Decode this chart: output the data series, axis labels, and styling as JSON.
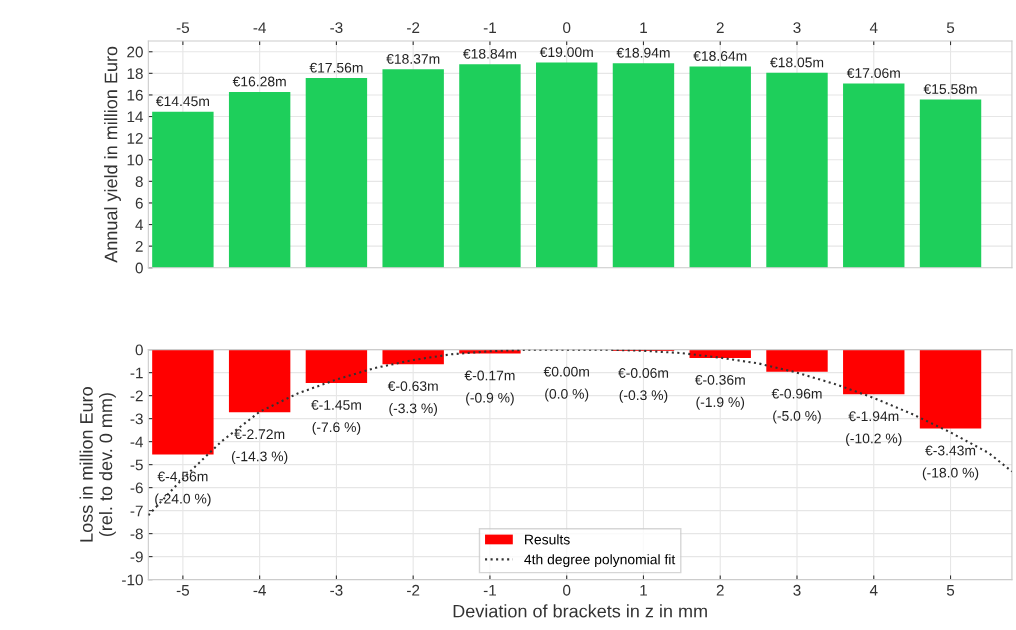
{
  "chart_data": [
    {
      "type": "bar",
      "x": [
        -5,
        -4,
        -3,
        -2,
        -1,
        0,
        1,
        2,
        3,
        4,
        5
      ],
      "xlim": [
        -5.45,
        5.8
      ],
      "xticks": [
        -5,
        -4,
        -3,
        -2,
        -1,
        0,
        1,
        2,
        3,
        4,
        5
      ],
      "ylim": [
        0,
        21
      ],
      "yticks": [
        0,
        2,
        4,
        6,
        8,
        10,
        12,
        14,
        16,
        18,
        20
      ],
      "ylabel": "Annual yield in million Euro",
      "grid": true,
      "series": [
        {
          "color": "#1ecf5b",
          "values": [
            14.45,
            16.28,
            17.56,
            18.37,
            18.84,
            19.0,
            18.94,
            18.64,
            18.05,
            17.06,
            15.58
          ],
          "value_labels": [
            "€14.45m",
            "€16.28m",
            "€17.56m",
            "€18.37m",
            "€18.84m",
            "€19.00m",
            "€18.94m",
            "€18.64m",
            "€18.05m",
            "€17.06m",
            "€15.58m"
          ]
        }
      ]
    },
    {
      "type": "bar",
      "x": [
        -5,
        -4,
        -3,
        -2,
        -1,
        0,
        1,
        2,
        3,
        4,
        5
      ],
      "xlim": [
        -5.45,
        5.8
      ],
      "xticks": [
        -5,
        -4,
        -3,
        -2,
        -1,
        0,
        1,
        2,
        3,
        4,
        5
      ],
      "ylim": [
        -10,
        0
      ],
      "yticks": [
        -10,
        -9,
        -8,
        -7,
        -6,
        -5,
        -4,
        -3,
        -2,
        -1,
        0
      ],
      "xlabel": "Deviation of brackets in z in mm",
      "ylabel": "Loss in million Euro\n(rel. to dev. 0 mm)",
      "grid": true,
      "legend": "bottom",
      "series": [
        {
          "name": "Results",
          "color": "#ff0000",
          "values": [
            -4.56,
            -2.72,
            -1.45,
            -0.63,
            -0.17,
            0.0,
            -0.06,
            -0.36,
            -0.96,
            -1.94,
            -3.43
          ],
          "value_labels": [
            "€-4.56m",
            "€-2.72m",
            "€-1.45m",
            "€-0.63m",
            "€-0.17m",
            "€0.00m",
            "€-0.06m",
            "€-0.36m",
            "€-0.96m",
            "€-1.94m",
            "€-3.43m"
          ]
        },
        {
          "name": "4th degree polynomial fit",
          "type": "line",
          "color": "#333333",
          "line_style": "dotted",
          "x": [
            -5.45,
            -5,
            -4.5,
            -4,
            -3.5,
            -3,
            -2.5,
            -2,
            -1.5,
            -1,
            -0.5,
            0,
            0.5,
            1,
            1.5,
            2,
            2.5,
            3,
            3.5,
            4,
            4.5,
            5,
            5.5,
            5.8
          ],
          "values": [
            -7.2,
            -5.6,
            -4.0,
            -2.7,
            -1.9,
            -1.3,
            -0.8,
            -0.45,
            -0.2,
            -0.07,
            0,
            0,
            0,
            -0.05,
            -0.15,
            -0.35,
            -0.6,
            -1.0,
            -1.5,
            -2.1,
            -2.8,
            -3.6,
            -4.5,
            -5.3
          ]
        }
      ],
      "annotations": [
        {
          "text": "(-24.0 %)",
          "x": -5,
          "y": -4.56
        },
        {
          "text": "(-14.3 %)",
          "x": -4,
          "y": -2.72
        },
        {
          "text": "(-7.6 %)",
          "x": -3,
          "y": -1.45
        },
        {
          "text": "(-3.3 %)",
          "x": -2,
          "y": -0.63
        },
        {
          "text": "(-0.9 %)",
          "x": -1,
          "y": -0.17
        },
        {
          "text": "(0.0 %)",
          "x": 0,
          "y": 0.0
        },
        {
          "text": "(-0.3 %)",
          "x": 1,
          "y": -0.06
        },
        {
          "text": "(-1.9 %)",
          "x": 2,
          "y": -0.36
        },
        {
          "text": "(-5.0 %)",
          "x": 3,
          "y": -0.96
        },
        {
          "text": "(-10.2 %)",
          "x": 4,
          "y": -1.94
        },
        {
          "text": "(-18.0 %)",
          "x": 5,
          "y": -3.43
        }
      ]
    }
  ]
}
